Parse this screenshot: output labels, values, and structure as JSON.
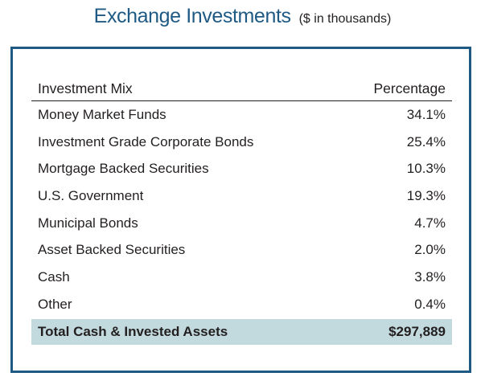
{
  "title": "Exchange Investments",
  "subtitle": "($ in thousands)",
  "table": {
    "headers": {
      "label": "Investment Mix",
      "value": "Percentage"
    },
    "rows": [
      {
        "label": "Money Market Funds",
        "value": "34.1%"
      },
      {
        "label": "Investment Grade Corporate Bonds",
        "value": "25.4%"
      },
      {
        "label": "Mortgage Backed Securities",
        "value": "10.3%"
      },
      {
        "label": "U.S. Government",
        "value": "19.3%"
      },
      {
        "label": "Municipal Bonds",
        "value": "4.7%"
      },
      {
        "label": "Asset Backed Securities",
        "value": "2.0%"
      },
      {
        "label": "Cash",
        "value": "3.8%"
      },
      {
        "label": "Other",
        "value": "0.4%"
      }
    ],
    "total": {
      "label": "Total Cash & Invested Assets",
      "value": "$297,889"
    }
  },
  "colors": {
    "accent": "#1f5a84",
    "total_row_bg": "#c2d9de",
    "text": "#231f20"
  }
}
